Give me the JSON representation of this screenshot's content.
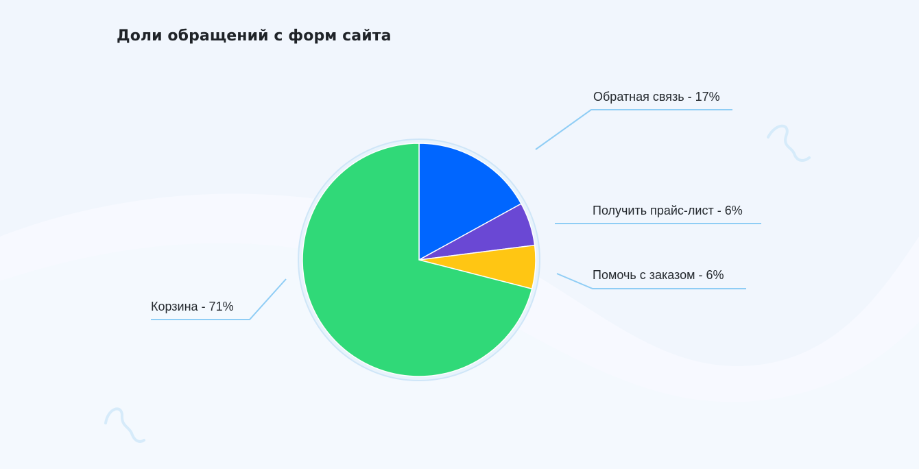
{
  "chart_data": {
    "type": "pie",
    "title": "Доли обращений с форм сайта",
    "slices": [
      {
        "name": "Обратная связь",
        "value": 17,
        "label": "Обратная связь - 17%",
        "color": "#0066ff"
      },
      {
        "name": "Получить прайс-лист",
        "value": 6,
        "label": "Получить прайс-лист - 6%",
        "color": "#6a48d4"
      },
      {
        "name": "Помочь с заказом",
        "value": 6,
        "label": "Помочь с заказом - 6%",
        "color": "#ffc613"
      },
      {
        "name": "Корзина",
        "value": 71,
        "label": "Корзина - 71%",
        "color": "#30d978"
      }
    ]
  },
  "colors": {
    "background": "#f1f6fd",
    "leader_line": "#8fcdf5",
    "ring": "#cfe6f8",
    "ring_inner": "#e8f3fc"
  }
}
